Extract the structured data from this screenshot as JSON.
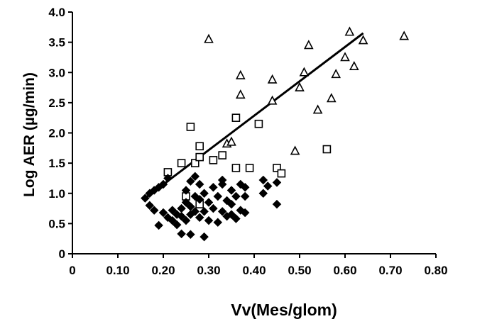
{
  "chart_data": {
    "type": "scatter",
    "title": "",
    "xlabel": "Vv(Mes/glom)",
    "ylabel": "Log AER (µg/min)",
    "xlim": [
      0,
      0.8
    ],
    "ylim": [
      0,
      4.0
    ],
    "x_ticks": [
      "0",
      "0.10",
      "0.20",
      "0.30",
      "0.40",
      "0.50",
      "0.60",
      "0.70",
      "0.80"
    ],
    "y_ticks": [
      "0",
      "0.5",
      "1.0",
      "1.5",
      "2.0",
      "2.5",
      "3.0",
      "3.5",
      "4.0"
    ],
    "grid": false,
    "legend": "none",
    "series": [
      {
        "marker": "triangle-open",
        "color": "#000000",
        "points": [
          [
            0.3,
            3.55
          ],
          [
            0.37,
            2.95
          ],
          [
            0.37,
            2.63
          ],
          [
            0.34,
            1.82
          ],
          [
            0.35,
            1.85
          ],
          [
            0.44,
            2.88
          ],
          [
            0.44,
            2.53
          ],
          [
            0.49,
            1.7
          ],
          [
            0.5,
            2.75
          ],
          [
            0.51,
            3.0
          ],
          [
            0.52,
            3.45
          ],
          [
            0.54,
            2.38
          ],
          [
            0.57,
            2.57
          ],
          [
            0.58,
            2.97
          ],
          [
            0.6,
            3.25
          ],
          [
            0.61,
            3.67
          ],
          [
            0.62,
            3.1
          ],
          [
            0.64,
            3.53
          ],
          [
            0.73,
            3.6
          ]
        ]
      },
      {
        "marker": "square-open",
        "color": "#000000",
        "points": [
          [
            0.21,
            1.35
          ],
          [
            0.24,
            1.5
          ],
          [
            0.25,
            0.95
          ],
          [
            0.26,
            2.1
          ],
          [
            0.27,
            1.5
          ],
          [
            0.28,
            1.78
          ],
          [
            0.28,
            1.6
          ],
          [
            0.28,
            0.82
          ],
          [
            0.31,
            1.55
          ],
          [
            0.33,
            1.63
          ],
          [
            0.36,
            2.25
          ],
          [
            0.36,
            1.42
          ],
          [
            0.39,
            1.42
          ],
          [
            0.41,
            2.15
          ],
          [
            0.45,
            1.42
          ],
          [
            0.46,
            1.33
          ],
          [
            0.56,
            1.73
          ]
        ]
      },
      {
        "marker": "diamond-filled",
        "color": "#000000",
        "points": [
          [
            0.16,
            0.92
          ],
          [
            0.17,
            1.0
          ],
          [
            0.17,
            0.8
          ],
          [
            0.18,
            0.72
          ],
          [
            0.18,
            1.05
          ],
          [
            0.19,
            0.47
          ],
          [
            0.19,
            1.1
          ],
          [
            0.2,
            1.15
          ],
          [
            0.2,
            0.68
          ],
          [
            0.21,
            0.6
          ],
          [
            0.21,
            1.25
          ],
          [
            0.22,
            0.55
          ],
          [
            0.22,
            0.72
          ],
          [
            0.23,
            0.48
          ],
          [
            0.23,
            0.65
          ],
          [
            0.24,
            0.62
          ],
          [
            0.24,
            0.75
          ],
          [
            0.24,
            0.33
          ],
          [
            0.25,
            0.55
          ],
          [
            0.25,
            0.85
          ],
          [
            0.25,
            1.05
          ],
          [
            0.26,
            0.65
          ],
          [
            0.26,
            0.78
          ],
          [
            0.26,
            1.2
          ],
          [
            0.26,
            0.32
          ],
          [
            0.27,
            0.7
          ],
          [
            0.27,
            0.95
          ],
          [
            0.27,
            1.28
          ],
          [
            0.28,
            0.6
          ],
          [
            0.28,
            0.9
          ],
          [
            0.28,
            1.15
          ],
          [
            0.29,
            0.7
          ],
          [
            0.29,
            0.28
          ],
          [
            0.29,
            1.0
          ],
          [
            0.3,
            0.55
          ],
          [
            0.3,
            0.85
          ],
          [
            0.31,
            0.75
          ],
          [
            0.31,
            1.1
          ],
          [
            0.32,
            0.95
          ],
          [
            0.32,
            0.52
          ],
          [
            0.33,
            1.15
          ],
          [
            0.33,
            0.7
          ],
          [
            0.33,
            1.22
          ],
          [
            0.34,
            0.88
          ],
          [
            0.34,
            0.62
          ],
          [
            0.35,
            1.05
          ],
          [
            0.35,
            0.65
          ],
          [
            0.35,
            0.82
          ],
          [
            0.36,
            0.95
          ],
          [
            0.36,
            0.58
          ],
          [
            0.37,
            1.15
          ],
          [
            0.37,
            0.72
          ],
          [
            0.38,
            1.1
          ],
          [
            0.38,
            0.95
          ],
          [
            0.38,
            0.68
          ],
          [
            0.42,
            1.0
          ],
          [
            0.42,
            1.22
          ],
          [
            0.43,
            1.12
          ],
          [
            0.45,
            1.18
          ],
          [
            0.45,
            0.82
          ]
        ]
      }
    ],
    "trendline": {
      "x": [
        0.16,
        0.64
      ],
      "y": [
        0.92,
        3.65
      ]
    }
  }
}
